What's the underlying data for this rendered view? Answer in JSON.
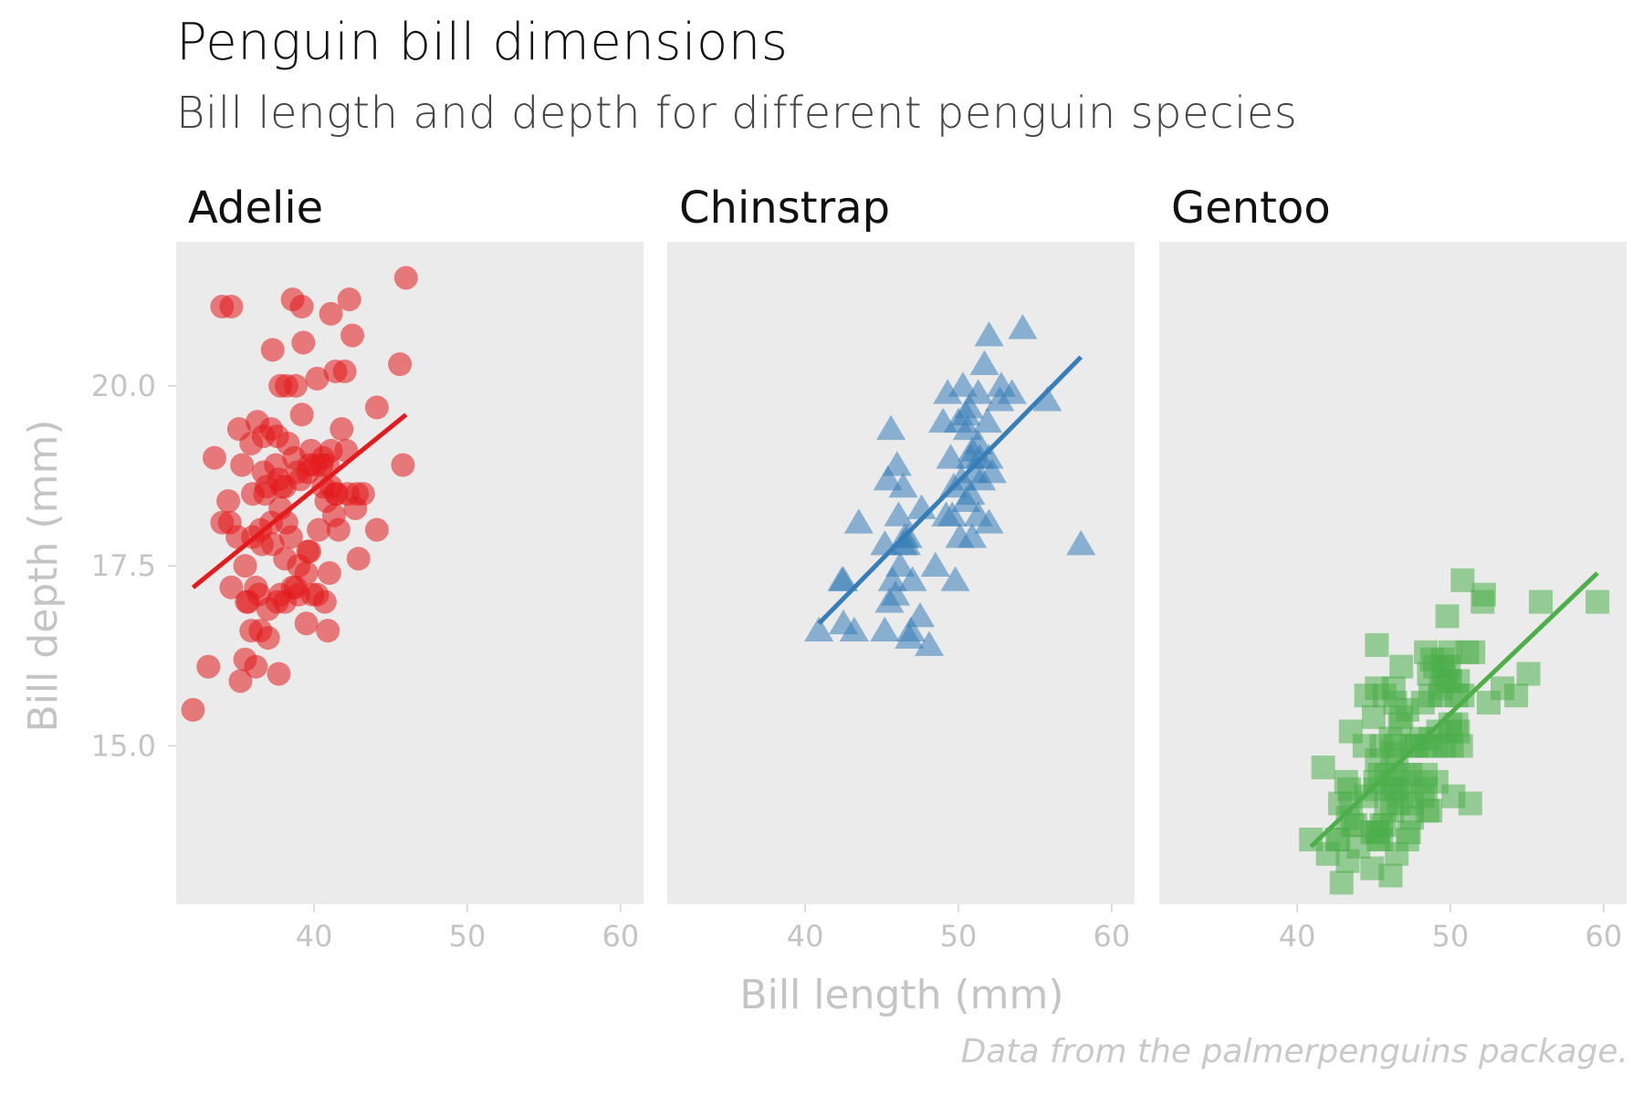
{
  "title": "Penguin bill dimensions",
  "subtitle": "Bill length and depth for different penguin species",
  "caption": "Data from the palmerpenguins package.",
  "chart_data": {
    "type": "scatter",
    "facet_by": "species",
    "xlabel": "Bill length (mm)",
    "ylabel": "Bill depth (mm)",
    "xlim": [
      31,
      61.5
    ],
    "ylim": [
      12.8,
      22.0
    ],
    "x_ticks": [
      40,
      50,
      60
    ],
    "y_ticks": [
      15.0,
      17.5,
      20.0
    ],
    "x_tick_labels": [
      "40",
      "50",
      "60"
    ],
    "y_tick_labels": [
      "15.0",
      "17.5",
      "20.0"
    ],
    "grid": false,
    "legend": "none",
    "panel_color": "#ebebeb",
    "panels": [
      {
        "name": "Adelie",
        "color": "#e41a1c",
        "marker": "circle",
        "trend": [
          [
            32.1,
            17.2
          ],
          [
            46.0,
            19.6
          ]
        ],
        "points": [
          [
            32.1,
            15.5
          ],
          [
            33.1,
            16.1
          ],
          [
            33.5,
            19.0
          ],
          [
            34.0,
            21.1
          ],
          [
            34.0,
            18.1
          ],
          [
            34.4,
            18.4
          ],
          [
            34.5,
            18.1
          ],
          [
            34.6,
            17.2
          ],
          [
            34.6,
            21.1
          ],
          [
            35.0,
            17.9
          ],
          [
            35.1,
            19.4
          ],
          [
            35.2,
            15.9
          ],
          [
            35.3,
            18.9
          ],
          [
            35.5,
            16.2
          ],
          [
            35.5,
            17.5
          ],
          [
            35.6,
            17.0
          ],
          [
            35.7,
            17.0
          ],
          [
            35.9,
            19.2
          ],
          [
            35.9,
            16.6
          ],
          [
            36.0,
            18.5
          ],
          [
            36.0,
            17.9
          ],
          [
            36.2,
            16.1
          ],
          [
            36.2,
            17.2
          ],
          [
            36.3,
            19.5
          ],
          [
            36.4,
            17.1
          ],
          [
            36.5,
            16.6
          ],
          [
            36.5,
            18.0
          ],
          [
            36.6,
            17.8
          ],
          [
            36.7,
            18.8
          ],
          [
            36.7,
            19.3
          ],
          [
            36.8,
            18.5
          ],
          [
            36.9,
            18.6
          ],
          [
            37.0,
            16.5
          ],
          [
            37.0,
            16.9
          ],
          [
            37.2,
            18.1
          ],
          [
            37.2,
            19.4
          ],
          [
            37.3,
            20.5
          ],
          [
            37.3,
            17.8
          ],
          [
            37.5,
            18.9
          ],
          [
            37.6,
            17.0
          ],
          [
            37.6,
            19.3
          ],
          [
            37.7,
            18.7
          ],
          [
            37.7,
            16.0
          ],
          [
            37.8,
            17.1
          ],
          [
            37.8,
            18.3
          ],
          [
            37.8,
            20.0
          ],
          [
            37.9,
            18.6
          ],
          [
            38.1,
            18.6
          ],
          [
            38.1,
            17.6
          ],
          [
            38.1,
            17.0
          ],
          [
            38.2,
            18.1
          ],
          [
            38.2,
            20.0
          ],
          [
            38.3,
            19.2
          ],
          [
            38.5,
            17.9
          ],
          [
            38.6,
            21.2
          ],
          [
            38.6,
            17.2
          ],
          [
            38.7,
            19.0
          ],
          [
            38.8,
            17.2
          ],
          [
            38.8,
            20.0
          ],
          [
            38.9,
            18.8
          ],
          [
            39.0,
            17.1
          ],
          [
            39.0,
            17.5
          ],
          [
            39.1,
            18.7
          ],
          [
            39.2,
            19.6
          ],
          [
            39.2,
            21.1
          ],
          [
            39.3,
            20.6
          ],
          [
            39.5,
            17.4
          ],
          [
            39.5,
            16.7
          ],
          [
            39.6,
            18.8
          ],
          [
            39.6,
            17.7
          ],
          [
            39.7,
            18.9
          ],
          [
            39.7,
            17.7
          ],
          [
            39.8,
            19.1
          ],
          [
            39.9,
            17.1
          ],
          [
            40.1,
            18.9
          ],
          [
            40.2,
            17.1
          ],
          [
            40.2,
            20.1
          ],
          [
            40.3,
            18.0
          ],
          [
            40.5,
            18.9
          ],
          [
            40.6,
            18.6
          ],
          [
            40.6,
            19.0
          ],
          [
            40.7,
            17.0
          ],
          [
            40.8,
            18.4
          ],
          [
            40.9,
            16.6
          ],
          [
            40.9,
            18.9
          ],
          [
            41.0,
            17.4
          ],
          [
            41.1,
            18.6
          ],
          [
            41.1,
            19.1
          ],
          [
            41.1,
            21.0
          ],
          [
            41.3,
            18.2
          ],
          [
            41.4,
            18.5
          ],
          [
            41.4,
            20.2
          ],
          [
            41.5,
            18.5
          ],
          [
            41.6,
            18.0
          ],
          [
            41.8,
            19.4
          ],
          [
            42.0,
            20.2
          ],
          [
            42.1,
            19.1
          ],
          [
            42.2,
            18.5
          ],
          [
            42.3,
            21.2
          ],
          [
            42.5,
            20.7
          ],
          [
            42.7,
            18.3
          ],
          [
            42.8,
            18.5
          ],
          [
            42.9,
            17.6
          ],
          [
            43.2,
            18.5
          ],
          [
            44.1,
            18.0
          ],
          [
            44.1,
            19.7
          ],
          [
            45.6,
            20.3
          ],
          [
            45.8,
            18.9
          ],
          [
            46.0,
            21.5
          ]
        ]
      },
      {
        "name": "Chinstrap",
        "color": "#377eb8",
        "marker": "triangle",
        "trend": [
          [
            40.9,
            16.7
          ],
          [
            58.0,
            20.4
          ]
        ],
        "points": [
          [
            40.9,
            16.6
          ],
          [
            42.4,
            17.3
          ],
          [
            42.5,
            16.7
          ],
          [
            42.5,
            17.3
          ],
          [
            43.2,
            16.6
          ],
          [
            43.5,
            18.1
          ],
          [
            45.2,
            16.6
          ],
          [
            45.2,
            17.8
          ],
          [
            45.4,
            18.7
          ],
          [
            45.5,
            17.0
          ],
          [
            45.6,
            19.4
          ],
          [
            45.7,
            17.3
          ],
          [
            45.9,
            17.1
          ],
          [
            46.0,
            18.9
          ],
          [
            46.1,
            18.2
          ],
          [
            46.2,
            17.5
          ],
          [
            46.4,
            18.6
          ],
          [
            46.4,
            17.8
          ],
          [
            46.5,
            17.9
          ],
          [
            46.6,
            17.8
          ],
          [
            46.7,
            17.9
          ],
          [
            46.8,
            16.5
          ],
          [
            46.9,
            16.6
          ],
          [
            47.0,
            17.3
          ],
          [
            47.5,
            16.8
          ],
          [
            47.6,
            18.3
          ],
          [
            48.1,
            16.4
          ],
          [
            48.5,
            17.5
          ],
          [
            49.0,
            19.5
          ],
          [
            49.2,
            18.2
          ],
          [
            49.3,
            19.9
          ],
          [
            49.5,
            19.0
          ],
          [
            49.6,
            18.2
          ],
          [
            49.7,
            18.6
          ],
          [
            49.8,
            17.3
          ],
          [
            50.0,
            19.5
          ],
          [
            50.1,
            17.9
          ],
          [
            50.2,
            18.7
          ],
          [
            50.3,
            20.0
          ],
          [
            50.5,
            18.4
          ],
          [
            50.5,
            19.6
          ],
          [
            50.6,
            19.4
          ],
          [
            50.7,
            19.7
          ],
          [
            50.8,
            18.5
          ],
          [
            50.8,
            19.0
          ],
          [
            50.9,
            17.9
          ],
          [
            50.9,
            19.1
          ],
          [
            51.0,
            18.8
          ],
          [
            51.3,
            19.2
          ],
          [
            51.3,
            18.2
          ],
          [
            51.3,
            19.9
          ],
          [
            51.4,
            19.0
          ],
          [
            51.5,
            18.7
          ],
          [
            51.7,
            20.3
          ],
          [
            51.9,
            19.5
          ],
          [
            52.0,
            18.1
          ],
          [
            52.0,
            19.0
          ],
          [
            52.0,
            20.7
          ],
          [
            52.2,
            18.8
          ],
          [
            52.7,
            19.8
          ],
          [
            52.8,
            20.0
          ],
          [
            53.5,
            19.9
          ],
          [
            54.2,
            20.8
          ],
          [
            55.8,
            19.8
          ],
          [
            58.0,
            17.8
          ]
        ]
      },
      {
        "name": "Gentoo",
        "color": "#4daf4a",
        "marker": "square",
        "trend": [
          [
            40.9,
            13.6
          ],
          [
            59.6,
            17.4
          ]
        ],
        "points": [
          [
            40.9,
            13.7
          ],
          [
            41.7,
            14.7
          ],
          [
            42.0,
            13.5
          ],
          [
            42.6,
            13.7
          ],
          [
            42.7,
            13.7
          ],
          [
            42.8,
            14.2
          ],
          [
            42.9,
            13.1
          ],
          [
            43.2,
            14.5
          ],
          [
            43.3,
            13.4
          ],
          [
            43.3,
            14.0
          ],
          [
            43.4,
            14.4
          ],
          [
            43.5,
            14.2
          ],
          [
            43.5,
            15.2
          ],
          [
            43.6,
            13.9
          ],
          [
            43.8,
            13.9
          ],
          [
            44.0,
            13.6
          ],
          [
            44.4,
            15.0
          ],
          [
            44.5,
            14.3
          ],
          [
            44.5,
            15.7
          ],
          [
            44.9,
            13.3
          ],
          [
            44.9,
            13.8
          ],
          [
            45.0,
            15.4
          ],
          [
            45.1,
            14.5
          ],
          [
            45.1,
            14.4
          ],
          [
            45.2,
            13.8
          ],
          [
            45.2,
            14.8
          ],
          [
            45.2,
            15.8
          ],
          [
            45.2,
            16.4
          ],
          [
            45.3,
            13.7
          ],
          [
            45.3,
            13.8
          ],
          [
            45.4,
            14.6
          ],
          [
            45.5,
            13.7
          ],
          [
            45.5,
            13.9
          ],
          [
            45.5,
            15.0
          ],
          [
            45.7,
            13.9
          ],
          [
            45.7,
            15.7
          ],
          [
            45.8,
            14.2
          ],
          [
            45.8,
            14.6
          ],
          [
            46.1,
            13.2
          ],
          [
            46.1,
            15.1
          ],
          [
            46.2,
            14.1
          ],
          [
            46.2,
            14.4
          ],
          [
            46.2,
            14.5
          ],
          [
            46.2,
            14.9
          ],
          [
            46.3,
            15.8
          ],
          [
            46.4,
            15.0
          ],
          [
            46.4,
            15.6
          ],
          [
            46.5,
            13.5
          ],
          [
            46.5,
            14.4
          ],
          [
            46.5,
            14.8
          ],
          [
            46.6,
            14.2
          ],
          [
            46.7,
            15.3
          ],
          [
            46.8,
            14.3
          ],
          [
            46.8,
            15.4
          ],
          [
            46.8,
            16.1
          ],
          [
            46.9,
            14.6
          ],
          [
            47.2,
            13.7
          ],
          [
            47.2,
            15.5
          ],
          [
            47.3,
            13.8
          ],
          [
            47.4,
            14.6
          ],
          [
            47.5,
            14.0
          ],
          [
            47.5,
            14.2
          ],
          [
            47.5,
            15.0
          ],
          [
            47.6,
            14.5
          ],
          [
            47.7,
            15.0
          ],
          [
            47.8,
            15.0
          ],
          [
            48.1,
            15.1
          ],
          [
            48.2,
            14.3
          ],
          [
            48.2,
            15.6
          ],
          [
            48.4,
            14.4
          ],
          [
            48.4,
            14.6
          ],
          [
            48.4,
            16.3
          ],
          [
            48.5,
            14.1
          ],
          [
            48.5,
            15.0
          ],
          [
            48.6,
            16.0
          ],
          [
            48.7,
            14.1
          ],
          [
            48.7,
            15.1
          ],
          [
            48.7,
            15.7
          ],
          [
            48.8,
            16.2
          ],
          [
            49.0,
            16.1
          ],
          [
            49.1,
            14.5
          ],
          [
            49.1,
            15.0
          ],
          [
            49.2,
            15.2
          ],
          [
            49.3,
            15.7
          ],
          [
            49.4,
            15.8
          ],
          [
            49.5,
            16.1
          ],
          [
            49.5,
            16.2
          ],
          [
            49.6,
            15.0
          ],
          [
            49.6,
            16.0
          ],
          [
            49.8,
            15.9
          ],
          [
            49.8,
            16.8
          ],
          [
            49.9,
            16.1
          ],
          [
            50.0,
            15.2
          ],
          [
            50.0,
            15.3
          ],
          [
            50.0,
            15.9
          ],
          [
            50.0,
            16.3
          ],
          [
            50.1,
            15.0
          ],
          [
            50.2,
            14.3
          ],
          [
            50.4,
            15.3
          ],
          [
            50.4,
            15.7
          ],
          [
            50.5,
            15.2
          ],
          [
            50.5,
            15.9
          ],
          [
            50.7,
            15.0
          ],
          [
            50.8,
            15.7
          ],
          [
            50.8,
            17.3
          ],
          [
            51.1,
            16.3
          ],
          [
            51.3,
            14.2
          ],
          [
            51.5,
            16.3
          ],
          [
            52.1,
            17.0
          ],
          [
            52.2,
            17.1
          ],
          [
            52.5,
            15.6
          ],
          [
            53.4,
            15.8
          ],
          [
            54.3,
            15.7
          ],
          [
            55.1,
            16.0
          ],
          [
            55.9,
            17.0
          ],
          [
            59.6,
            17.0
          ]
        ]
      }
    ]
  }
}
